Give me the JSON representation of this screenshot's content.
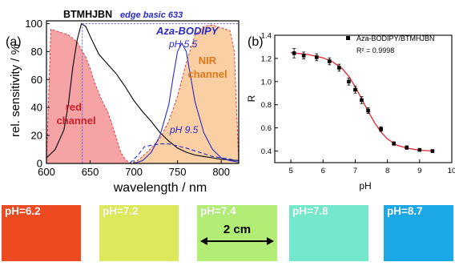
{
  "chart_data": [
    {
      "type": "area",
      "panel_label": "(a)",
      "xlabel": "wavelength / nm",
      "ylabel": "rel. sensitivity / %",
      "xlim": [
        600,
        820
      ],
      "ylim": [
        0,
        102
      ],
      "xticks": [
        "600",
        "650",
        "700",
        "750",
        "800"
      ],
      "yticks": [
        "0",
        "20",
        "40",
        "60",
        "80",
        "100"
      ],
      "annotations": {
        "top_left": "BTMHJBN",
        "edge": "edge basic 633",
        "dye": "Aza-BODIPY",
        "ph_high": "pH 5.5",
        "ph_low": "pH 9.5",
        "red_channel_line1": "red",
        "red_channel_line2": "channel",
        "nir_channel_line1": "NIR",
        "nir_channel_line2": "channel"
      },
      "edge_wavelength": 641,
      "series": [
        {
          "key": "red_channel",
          "color": "#f6a3a6",
          "edge": "#e0303a",
          "x": [
            600,
            605,
            615,
            625,
            635,
            645,
            650,
            655,
            660,
            665,
            670,
            675,
            680,
            685,
            690,
            695,
            700
          ],
          "y": [
            0,
            96,
            94,
            92,
            87,
            76,
            68,
            58,
            50,
            43,
            37,
            28,
            18,
            8,
            3,
            0.5,
            0
          ]
        },
        {
          "key": "nir_channel",
          "color": "#f9cfa3",
          "edge": "#e0303a",
          "x": [
            700,
            710,
            720,
            730,
            740,
            750,
            760,
            770,
            780,
            790,
            800,
            810,
            815,
            820
          ],
          "y": [
            0,
            5,
            11,
            18,
            30,
            48,
            72,
            92,
            98,
            99,
            97,
            95,
            80,
            0
          ]
        },
        {
          "key": "btmhjbn",
          "color": "#000000",
          "x": [
            600,
            610,
            620,
            625,
            630,
            635,
            640,
            645,
            650,
            660,
            670,
            680,
            690,
            700,
            710,
            720,
            730,
            740,
            750,
            760,
            770,
            780,
            790,
            800,
            810,
            820
          ],
          "y": [
            4,
            10,
            24,
            42,
            68,
            88,
            100,
            98,
            91,
            78,
            71,
            64,
            55,
            45,
            37,
            30,
            22,
            16,
            11,
            8,
            6,
            5,
            4,
            3,
            2.5,
            2
          ]
        },
        {
          "key": "ph55",
          "color": "#2a2ac8",
          "x": [
            600,
            700,
            710,
            720,
            730,
            740,
            745,
            750,
            755,
            760,
            765,
            770,
            780,
            790,
            800,
            810,
            820
          ],
          "y": [
            0,
            0,
            2,
            8,
            20,
            42,
            62,
            80,
            86,
            80,
            62,
            44,
            22,
            10,
            4,
            2,
            1
          ]
        },
        {
          "key": "ph95",
          "color": "#2a2ac8",
          "dash": "5,3",
          "x": [
            600,
            695,
            705,
            712,
            720,
            730,
            740,
            750,
            760,
            770,
            780,
            790,
            800,
            810,
            820
          ],
          "y": [
            0,
            0,
            6,
            12,
            13,
            14,
            14,
            12.5,
            11,
            9,
            7,
            5,
            4,
            3,
            2
          ]
        }
      ]
    },
    {
      "type": "scatter",
      "panel_label": "(b)",
      "xlabel": "pH",
      "ylabel": "R",
      "xlim": [
        4.5,
        10
      ],
      "ylim": [
        0.3,
        1.4
      ],
      "xticks": [
        "5",
        "6",
        "7",
        "8",
        "9",
        "10"
      ],
      "yticks": [
        "0.4",
        "0.6",
        "0.8",
        "1.0",
        "1.2",
        "1.4"
      ],
      "legend": "Aza-BODIPY/BTMHJBN",
      "r_squared": "R² = 0.9998",
      "points": {
        "x": [
          5.1,
          5.4,
          5.8,
          6.2,
          6.5,
          6.8,
          7.0,
          7.2,
          7.4,
          7.8,
          8.2,
          8.6,
          9.0,
          9.4
        ],
        "y": [
          1.245,
          1.225,
          1.21,
          1.175,
          1.12,
          1.0,
          0.93,
          0.84,
          0.75,
          0.59,
          0.465,
          0.43,
          0.41,
          0.4
        ],
        "err": [
          0.04,
          0.03,
          0.03,
          0.03,
          0.03,
          0.03,
          0.03,
          0.03,
          0.025,
          0.02,
          0.015,
          0.015,
          0.01,
          0.01
        ]
      },
      "fit": {
        "x": [
          5.0,
          5.5,
          6.0,
          6.3,
          6.6,
          6.8,
          7.0,
          7.2,
          7.4,
          7.6,
          7.8,
          8.0,
          8.3,
          8.6,
          9.0,
          9.4
        ],
        "y": [
          1.25,
          1.235,
          1.205,
          1.17,
          1.11,
          1.045,
          0.955,
          0.85,
          0.745,
          0.645,
          0.565,
          0.505,
          0.45,
          0.425,
          0.407,
          0.401
        ]
      }
    }
  ],
  "swatches": [
    {
      "label": "pH=6.2",
      "color": "#ee4a22"
    },
    {
      "label": "pH=7.2",
      "color": "#dde85a"
    },
    {
      "label": "pH=7.4",
      "color": "#b2ee76"
    },
    {
      "label": "pH=7.8",
      "color": "#74e8cc"
    },
    {
      "label": "pH=8.7",
      "color": "#1aa8e6"
    }
  ],
  "scale_bar": {
    "label": "2 cm"
  }
}
